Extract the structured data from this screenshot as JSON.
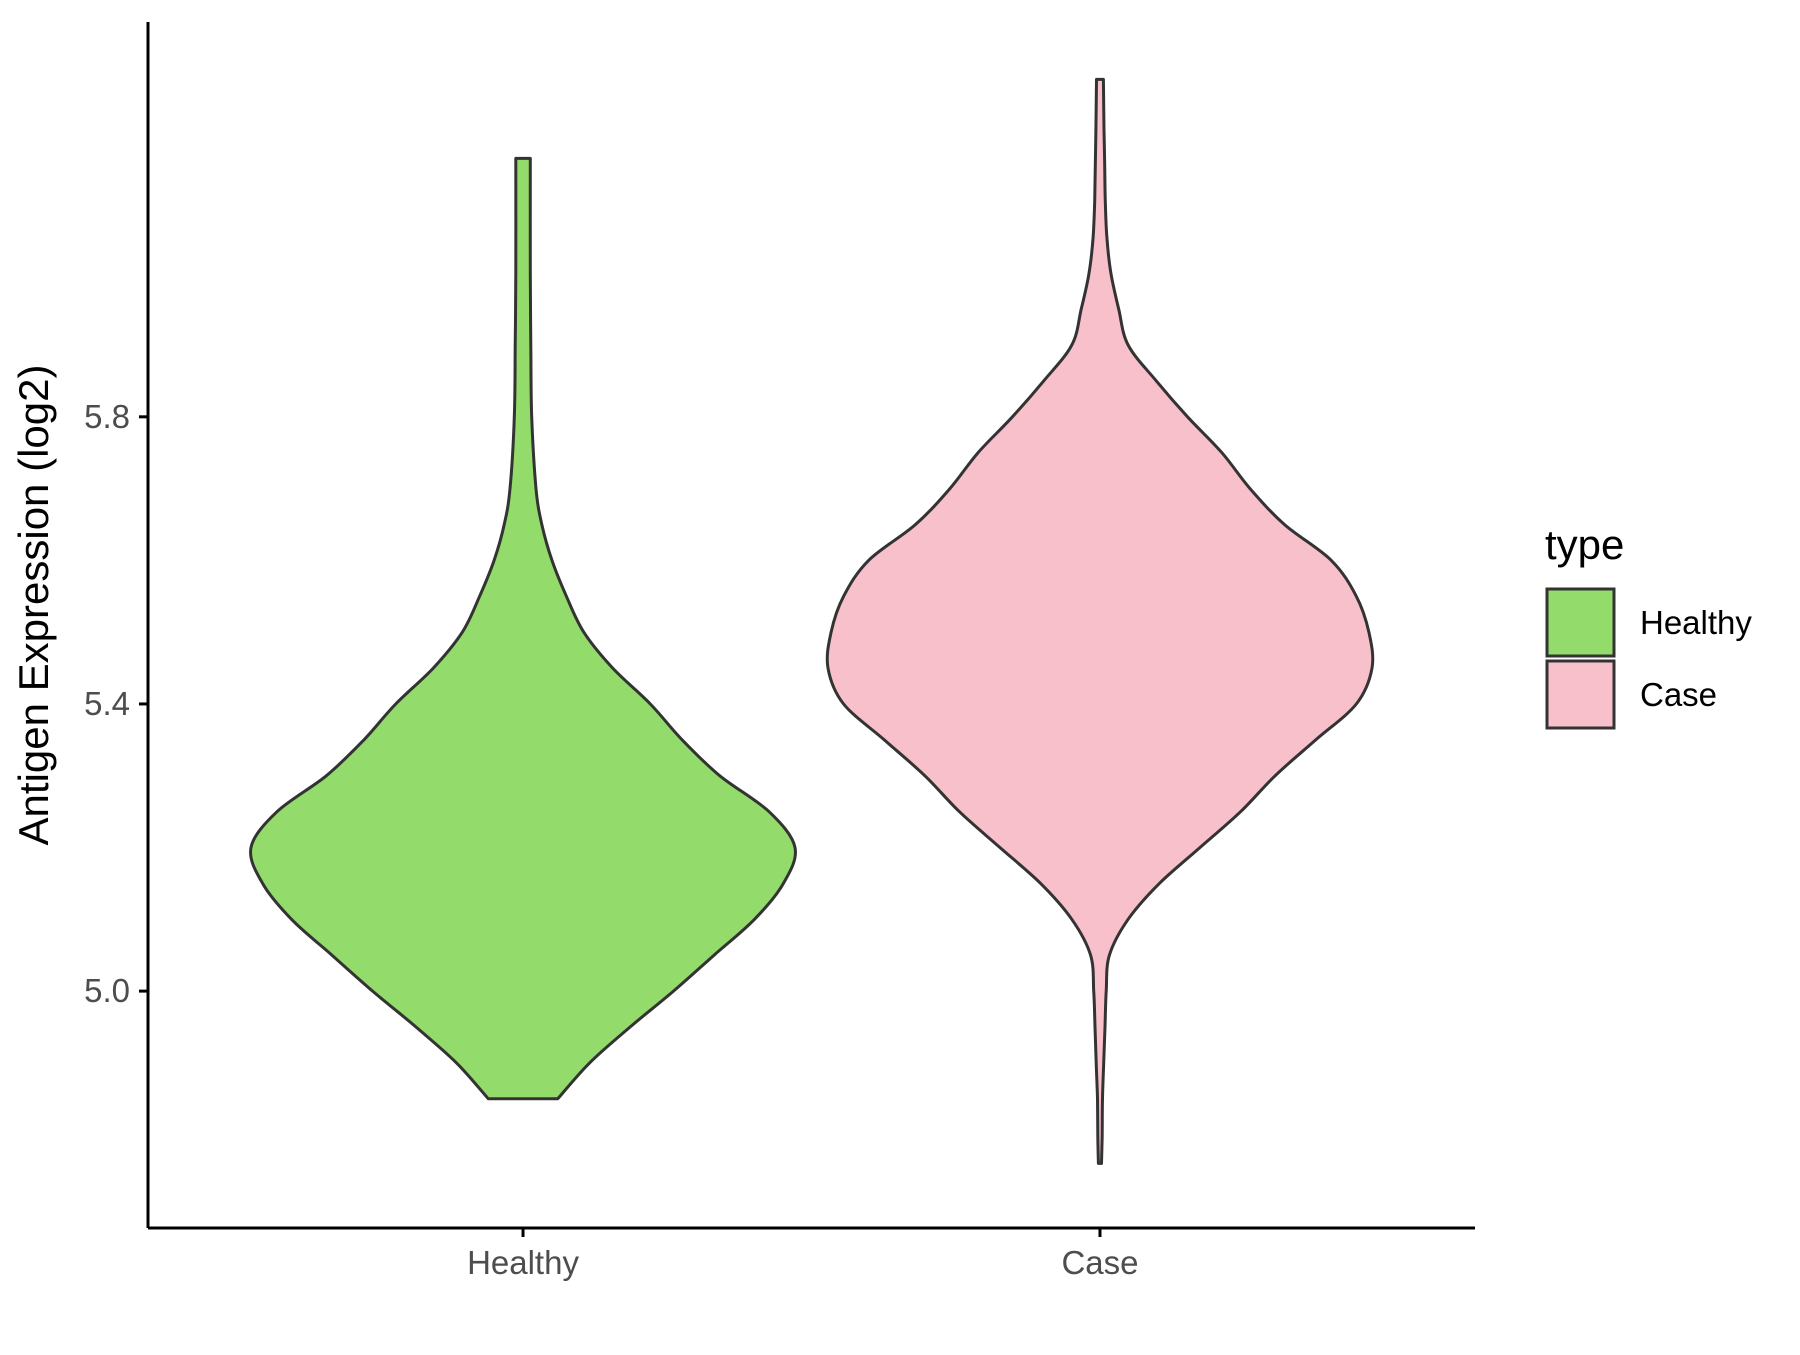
{
  "chart_data": {
    "type": "violin",
    "ylabel": "Antigen Expression (log2)",
    "xlabel": "",
    "categories": [
      "Healthy",
      "Case"
    ],
    "yticks": [
      5.0,
      5.4,
      5.8
    ],
    "ytick_labels": [
      "5.0",
      "5.4",
      "5.8"
    ],
    "ylim": [
      4.67,
      6.35
    ],
    "grid": false,
    "legend": {
      "title": "type",
      "position": "right",
      "entries": [
        {
          "label": "Healthy",
          "color": "#93dc6b"
        },
        {
          "label": "Case",
          "color": "#f7c0cb"
        }
      ]
    },
    "series": [
      {
        "group": "Healthy",
        "color": "#93dc6b",
        "min": 4.85,
        "max": 6.16,
        "density_profile": [
          [
            4.85,
            0.12
          ],
          [
            4.9,
            0.23
          ],
          [
            4.95,
            0.37
          ],
          [
            5.0,
            0.52
          ],
          [
            5.05,
            0.66
          ],
          [
            5.1,
            0.8
          ],
          [
            5.15,
            0.9
          ],
          [
            5.2,
            0.94
          ],
          [
            5.25,
            0.85
          ],
          [
            5.3,
            0.68
          ],
          [
            5.35,
            0.55
          ],
          [
            5.4,
            0.44
          ],
          [
            5.45,
            0.31
          ],
          [
            5.5,
            0.21
          ],
          [
            5.55,
            0.15
          ],
          [
            5.6,
            0.1
          ],
          [
            5.65,
            0.065
          ],
          [
            5.7,
            0.045
          ],
          [
            5.8,
            0.03
          ],
          [
            5.9,
            0.027
          ],
          [
            6.0,
            0.025
          ],
          [
            6.16,
            0.025
          ]
        ]
      },
      {
        "group": "Case",
        "color": "#f7c0cb",
        "min": 4.76,
        "max": 6.27,
        "density_profile": [
          [
            4.76,
            0.005
          ],
          [
            4.8,
            0.007
          ],
          [
            4.85,
            0.008
          ],
          [
            4.9,
            0.012
          ],
          [
            4.95,
            0.016
          ],
          [
            5.0,
            0.02
          ],
          [
            5.05,
            0.03
          ],
          [
            5.1,
            0.09
          ],
          [
            5.15,
            0.19
          ],
          [
            5.2,
            0.32
          ],
          [
            5.25,
            0.45
          ],
          [
            5.3,
            0.56
          ],
          [
            5.35,
            0.69
          ],
          [
            5.4,
            0.82
          ],
          [
            5.45,
            0.87
          ],
          [
            5.5,
            0.86
          ],
          [
            5.55,
            0.82
          ],
          [
            5.6,
            0.74
          ],
          [
            5.65,
            0.59
          ],
          [
            5.7,
            0.48
          ],
          [
            5.75,
            0.39
          ],
          [
            5.8,
            0.28
          ],
          [
            5.85,
            0.18
          ],
          [
            5.9,
            0.09
          ],
          [
            5.95,
            0.06
          ],
          [
            6.0,
            0.035
          ],
          [
            6.05,
            0.022
          ],
          [
            6.1,
            0.017
          ],
          [
            6.15,
            0.015
          ],
          [
            6.2,
            0.013
          ],
          [
            6.27,
            0.011
          ]
        ]
      }
    ]
  }
}
